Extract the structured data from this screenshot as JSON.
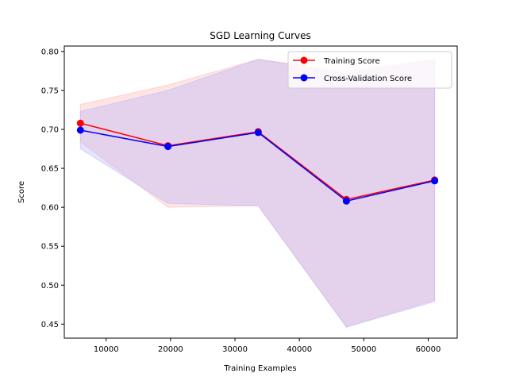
{
  "chart_data": {
    "type": "line",
    "title": "SGD Learning Curves",
    "xlabel": "Training Examples",
    "ylabel": "Score",
    "xlim": [
      3500,
      64500
    ],
    "ylim": [
      0.432,
      0.807
    ],
    "xticks": [
      10000,
      20000,
      30000,
      40000,
      50000,
      60000
    ],
    "xtick_labels": [
      "10000",
      "20000",
      "30000",
      "40000",
      "50000",
      "60000"
    ],
    "yticks": [
      0.45,
      0.5,
      0.55,
      0.6,
      0.65,
      0.7,
      0.75,
      0.8
    ],
    "ytick_labels": [
      "0.45",
      "0.50",
      "0.55",
      "0.60",
      "0.65",
      "0.70",
      "0.75",
      "0.80"
    ],
    "grid": false,
    "legend_position": "top-right",
    "x": [
      6000,
      19600,
      33600,
      47300,
      61000
    ],
    "series": [
      {
        "name": "Training Score",
        "color": "#ff0000",
        "band_color": "#ffb3b3",
        "values": [
          0.708,
          0.679,
          0.697,
          0.61,
          0.635
        ],
        "lower": [
          0.684,
          0.6,
          0.602,
          0.447,
          0.481
        ],
        "upper": [
          0.732,
          0.757,
          0.79,
          0.775,
          0.79
        ]
      },
      {
        "name": "Cross-Validation Score",
        "color": "#0000ff",
        "band_color": "#b3b3ff",
        "values": [
          0.699,
          0.678,
          0.696,
          0.608,
          0.634
        ],
        "lower": [
          0.675,
          0.605,
          0.602,
          0.446,
          0.479
        ],
        "upper": [
          0.723,
          0.75,
          0.79,
          0.771,
          0.789
        ]
      }
    ]
  }
}
